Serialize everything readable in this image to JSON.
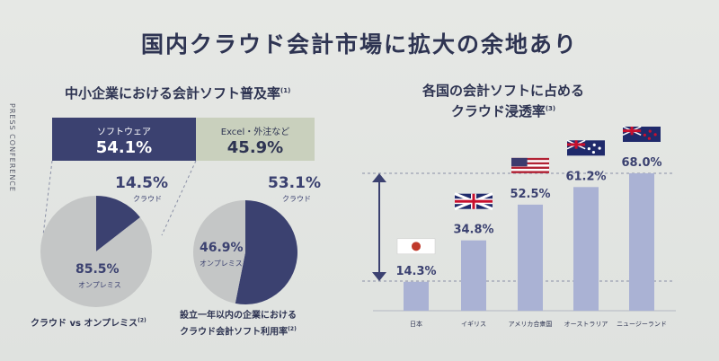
{
  "side_text": "PRESS CONFERENCE",
  "title": "国内クラウド会計市場に拡大の余地あり",
  "left_subtitle": "中小企業における会計ソフト普及率",
  "left_subtitle_sup": "(1)",
  "right_subtitle_line1": "各国の会計ソフトに占める",
  "right_subtitle_line2": "クラウド浸透率",
  "right_subtitle_sup": "(3)",
  "boxes": {
    "software_label": "ソフトウェア",
    "software_value": "54.1%",
    "excel_label": "Excel・外注など",
    "excel_value": "45.9%"
  },
  "pie1": {
    "cloud_value": "14.5%",
    "cloud_label": "クラウド",
    "onprem_value": "85.5%",
    "onprem_label": "オンプレミス",
    "caption": "クラウド vs オンプレミス",
    "caption_sup": "(2)"
  },
  "pie2": {
    "cloud_value": "53.1%",
    "cloud_label": "クラウド",
    "onprem_value": "46.9%",
    "onprem_label": "オンプレミス",
    "caption_line1": "設立一年以内の企業における",
    "caption_line2": "クラウド会計ソフト利用率",
    "caption_sup": "(2)"
  },
  "colors": {
    "navy": "#3b4170",
    "pie_light": "#c4c6c6",
    "bar": "#aab2d4",
    "sage": "#c9d0bd"
  },
  "chart_data": [
    {
      "type": "pie",
      "labels": [
        "クラウド",
        "オンプレミス"
      ],
      "values": [
        14.5,
        85.5
      ]
    },
    {
      "type": "pie",
      "labels": [
        "クラウド",
        "オンプレミス"
      ],
      "values": [
        53.1,
        46.9
      ]
    },
    {
      "type": "bar",
      "categories": [
        "日本",
        "イギリス",
        "アメリカ合衆国",
        "オーストラリア",
        "ニュージーランド"
      ],
      "values": [
        14.3,
        34.8,
        52.5,
        61.2,
        68.0
      ],
      "value_labels": [
        "14.3%",
        "34.8%",
        "52.5%",
        "61.2%",
        "68.0%"
      ],
      "flags": [
        "japan-flag-icon",
        "uk-flag-icon",
        "usa-flag-icon",
        "australia-flag-icon",
        "new-zealand-flag-icon"
      ],
      "ylim": [
        0,
        70
      ],
      "grid": false
    }
  ]
}
